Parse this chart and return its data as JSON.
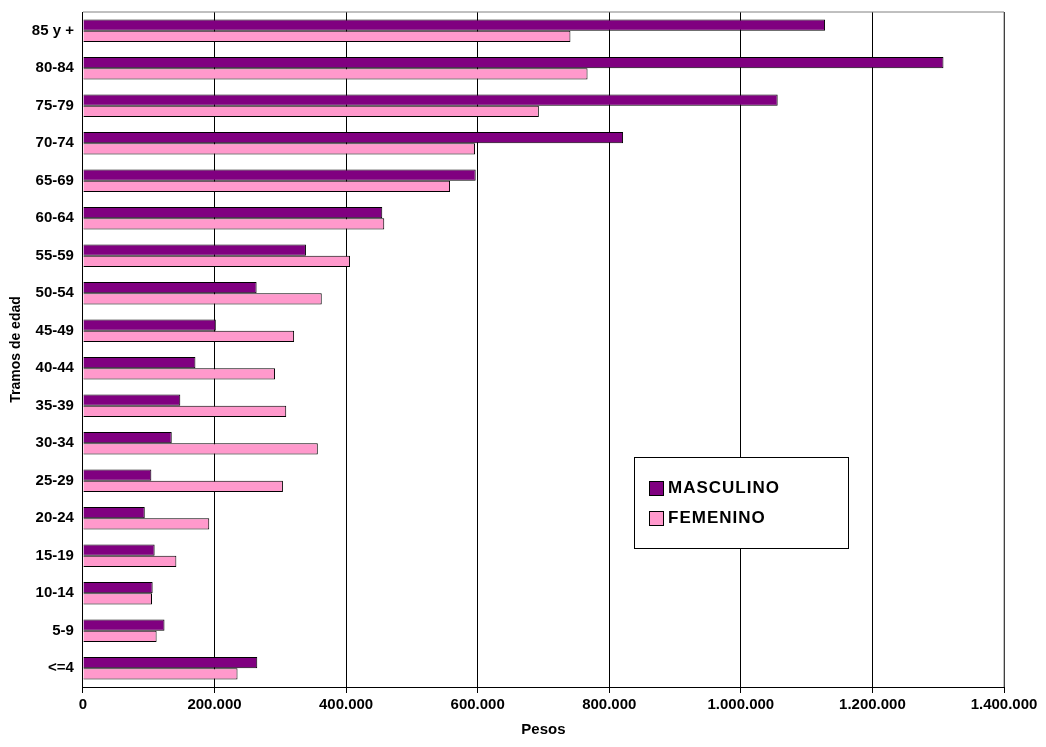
{
  "chart_data": {
    "type": "bar",
    "orientation": "horizontal",
    "xlabel": "Pesos",
    "ylabel": "Tramos de edad",
    "categories": [
      "85 y +",
      "80-84",
      "75-79",
      "70-74",
      "65-69",
      "60-64",
      "55-59",
      "50-54",
      "45-49",
      "40-44",
      "35-39",
      "30-34",
      "25-29",
      "20-24",
      "15-19",
      "10-14",
      "5-9",
      "<=4"
    ],
    "series": [
      {
        "name": "MASCULINO",
        "color": "#800080",
        "values": [
          1128000,
          1308000,
          1056000,
          821000,
          597000,
          455000,
          339000,
          264000,
          202000,
          171000,
          148000,
          135000,
          104000,
          94000,
          109000,
          106000,
          124000,
          265000
        ]
      },
      {
        "name": "FEMENINO",
        "color": "#ff99cc",
        "values": [
          741000,
          767000,
          693000,
          596000,
          558000,
          458000,
          406000,
          363000,
          321000,
          292000,
          309000,
          357000,
          304000,
          192000,
          142000,
          105000,
          112000,
          235000
        ]
      }
    ],
    "xlim": [
      0,
      1400000
    ],
    "xticks": [
      0,
      {
        "value": 200000,
        "label": "200.000"
      },
      {
        "value": 400000,
        "label": "400.000"
      },
      {
        "value": 600000,
        "label": "600.000"
      },
      {
        "value": 800000,
        "label": "800.000"
      },
      {
        "value": 1000000,
        "label": "1.000.000"
      },
      {
        "value": 1200000,
        "label": "1.200.000"
      },
      {
        "value": 1400000,
        "label": "1.400.000"
      }
    ],
    "grid": "x",
    "legend": "bottom right"
  }
}
